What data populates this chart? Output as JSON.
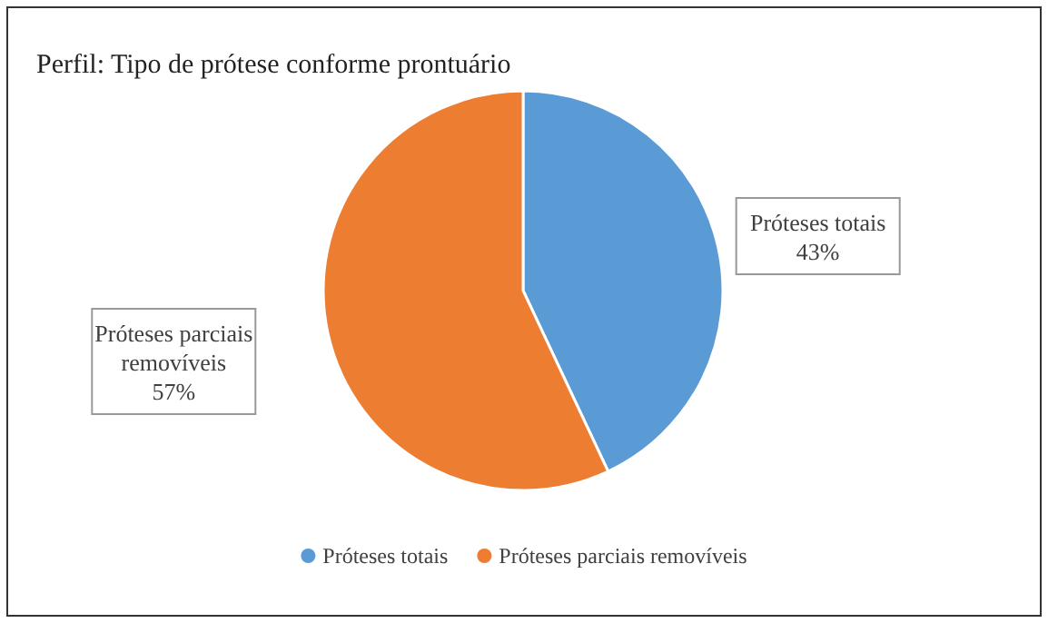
{
  "chart_data": {
    "type": "pie",
    "title": "Perfil:  Tipo de prótese conforme prontuário",
    "categories": [
      "Próteses totais",
      "Próteses parciais removíveis"
    ],
    "values": [
      43,
      57
    ],
    "value_labels": [
      "43%",
      "57%"
    ],
    "colors": [
      "#5b9bd5",
      "#ed7d31"
    ],
    "legend": "bottom"
  }
}
